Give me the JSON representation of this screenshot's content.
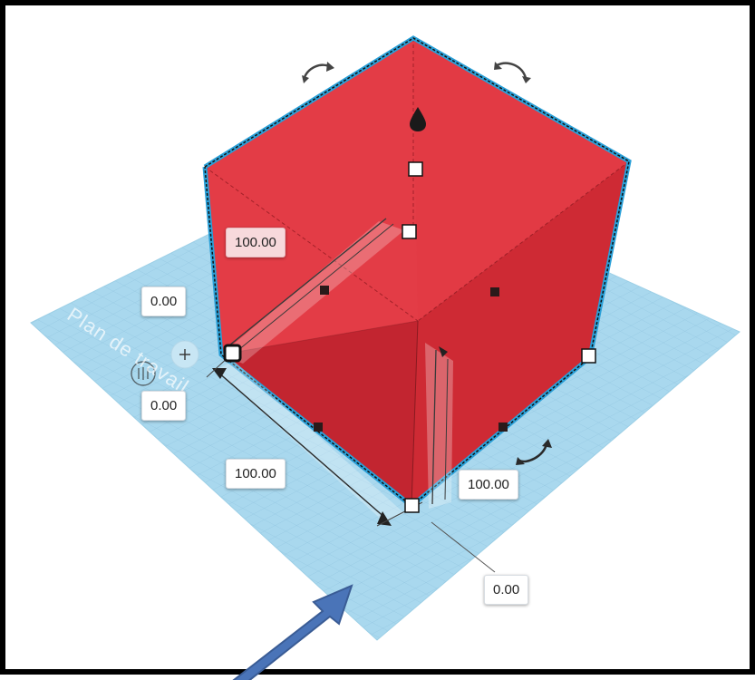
{
  "viewport": {
    "workplane_label": "Plan de travail",
    "colors": {
      "shape_fill": "#d9323c",
      "shape_edge": "#2aa0d8",
      "workplane": "#a9d8ee",
      "grid_line": "#8fc3df",
      "arrow": "#4a74b8"
    }
  },
  "dimensions": {
    "height": "100.00",
    "elevation": "0.00",
    "offset_x": "0.00",
    "length": "100.00",
    "width": "100.00",
    "offset_y": "0.00"
  },
  "icons": {
    "rotate_top_left": "rotate-arrow-icon",
    "rotate_top_right": "rotate-arrow-icon",
    "rotate_right": "rotate-arrow-icon",
    "lift_cone": "lift-cone-icon",
    "ruler": "ruler-icon",
    "pointer": "callout-arrow-icon"
  }
}
